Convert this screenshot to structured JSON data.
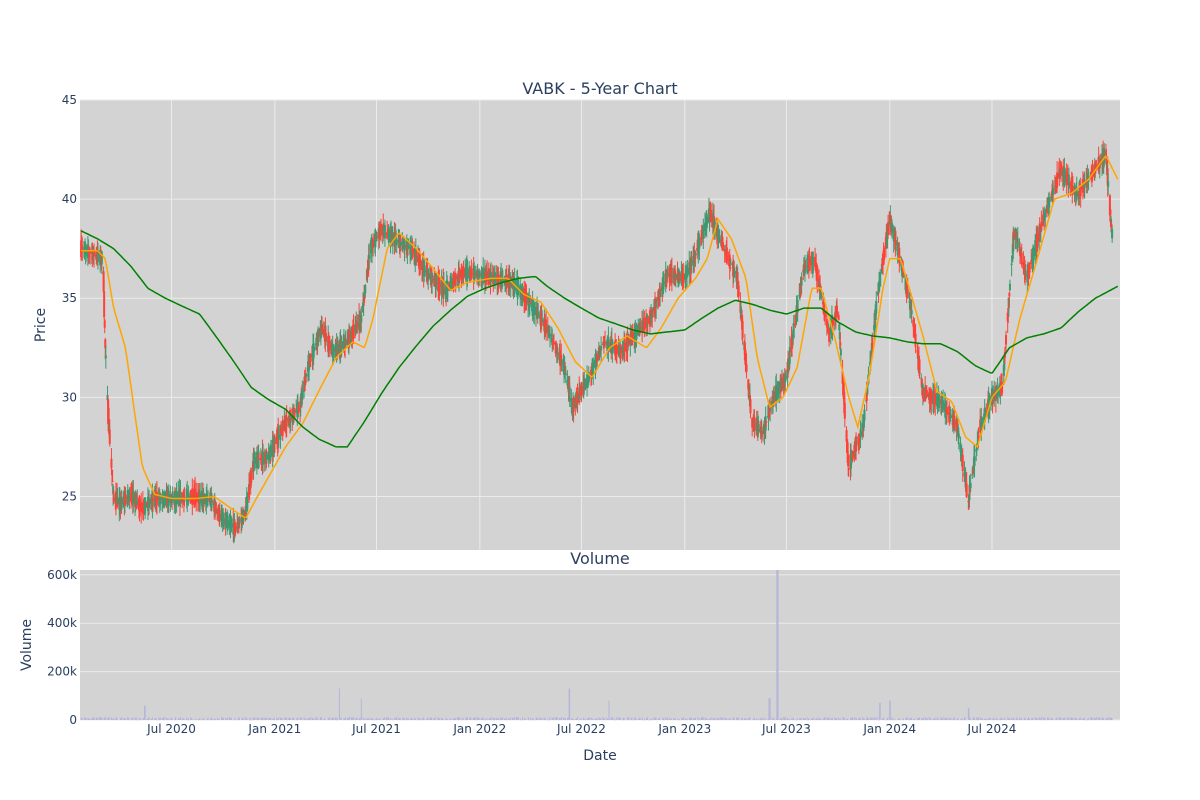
{
  "chart_data": {
    "type": "candlestick",
    "title": "VABK - 5-Year Chart",
    "price_panel": {
      "ylabel": "Price",
      "ylim": [
        22.3,
        45
      ],
      "yticks": [
        25,
        30,
        35,
        40,
        45
      ],
      "grid": true,
      "bars_anchor": [
        [
          "2020-01-22",
          37.5
        ],
        [
          "2020-02-10",
          37.3
        ],
        [
          "2020-03-01",
          37.0
        ],
        [
          "2020-03-05",
          33.0
        ],
        [
          "2020-03-10",
          29.5
        ],
        [
          "2020-03-20",
          25.0
        ],
        [
          "2020-04-01",
          24.6
        ],
        [
          "2020-04-20",
          25.1
        ],
        [
          "2020-05-10",
          24.4
        ],
        [
          "2020-06-01",
          24.9
        ],
        [
          "2020-07-01",
          24.9
        ],
        [
          "2020-08-10",
          25.0
        ],
        [
          "2020-09-10",
          24.8
        ],
        [
          "2020-10-01",
          23.8
        ],
        [
          "2020-10-25",
          23.4
        ],
        [
          "2020-11-10",
          24.2
        ],
        [
          "2020-11-25",
          26.8
        ],
        [
          "2020-12-20",
          27.0
        ],
        [
          "2021-01-20",
          28.7
        ],
        [
          "2021-02-15",
          29.5
        ],
        [
          "2021-03-01",
          31.5
        ],
        [
          "2021-03-25",
          33.5
        ],
        [
          "2021-04-15",
          32.3
        ],
        [
          "2021-05-10",
          32.8
        ],
        [
          "2021-06-05",
          34.0
        ],
        [
          "2021-06-20",
          37.5
        ],
        [
          "2021-07-10",
          38.5
        ],
        [
          "2021-08-10",
          37.8
        ],
        [
          "2021-09-01",
          37.5
        ],
        [
          "2021-10-01",
          36.2
        ],
        [
          "2021-11-01",
          35.4
        ],
        [
          "2021-12-01",
          36.3
        ],
        [
          "2022-01-01",
          36.2
        ],
        [
          "2022-02-01",
          36.0
        ],
        [
          "2022-03-01",
          35.8
        ],
        [
          "2022-04-01",
          34.8
        ],
        [
          "2022-05-01",
          33.5
        ],
        [
          "2022-06-01",
          31.5
        ],
        [
          "2022-06-15",
          29.5
        ],
        [
          "2022-07-15",
          31.0
        ],
        [
          "2022-08-10",
          32.8
        ],
        [
          "2022-09-10",
          32.3
        ],
        [
          "2022-10-10",
          33.4
        ],
        [
          "2022-11-01",
          34.0
        ],
        [
          "2022-12-01",
          36.2
        ],
        [
          "2023-01-01",
          36.0
        ],
        [
          "2023-01-20",
          37.2
        ],
        [
          "2023-02-15",
          39.3
        ],
        [
          "2023-03-15",
          37.3
        ],
        [
          "2023-04-05",
          36.0
        ],
        [
          "2023-05-01",
          28.8
        ],
        [
          "2023-05-20",
          28.2
        ],
        [
          "2023-06-10",
          30.1
        ],
        [
          "2023-07-01",
          31.0
        ],
        [
          "2023-08-01",
          36.5
        ],
        [
          "2023-08-20",
          37.0
        ],
        [
          "2023-09-15",
          33.2
        ],
        [
          "2023-10-01",
          34.5
        ],
        [
          "2023-10-20",
          26.5
        ],
        [
          "2023-11-15",
          28.5
        ],
        [
          "2023-12-10",
          35.0
        ],
        [
          "2024-01-01",
          39.0
        ],
        [
          "2024-01-20",
          37.0
        ],
        [
          "2024-02-10",
          34.2
        ],
        [
          "2024-03-01",
          30.2
        ],
        [
          "2024-04-01",
          29.8
        ],
        [
          "2024-05-01",
          28.5
        ],
        [
          "2024-05-20",
          24.8
        ],
        [
          "2024-06-10",
          28.5
        ],
        [
          "2024-07-01",
          30.0
        ],
        [
          "2024-07-20",
          30.5
        ],
        [
          "2024-08-10",
          38.5
        ],
        [
          "2024-09-01",
          36.0
        ],
        [
          "2024-10-01",
          39.0
        ],
        [
          "2024-11-01",
          41.5
        ],
        [
          "2024-12-01",
          40.2
        ],
        [
          "2025-01-01",
          41.5
        ],
        [
          "2025-01-20",
          42.3
        ],
        [
          "2025-02-01",
          38.0
        ]
      ],
      "sma_50": [
        [
          "2020-01-22",
          37.4
        ],
        [
          "2020-02-20",
          37.4
        ],
        [
          "2020-03-05",
          37.0
        ],
        [
          "2020-03-20",
          34.5
        ],
        [
          "2020-04-10",
          32.5
        ],
        [
          "2020-04-25",
          29.5
        ],
        [
          "2020-05-10",
          26.5
        ],
        [
          "2020-06-01",
          25.1
        ],
        [
          "2020-07-01",
          24.9
        ],
        [
          "2020-08-15",
          24.9
        ],
        [
          "2020-09-15",
          25.0
        ],
        [
          "2020-10-20",
          24.3
        ],
        [
          "2020-11-10",
          23.9
        ],
        [
          "2020-12-01",
          25.0
        ],
        [
          "2020-12-25",
          26.2
        ],
        [
          "2021-01-20",
          27.5
        ],
        [
          "2021-02-20",
          28.7
        ],
        [
          "2021-03-20",
          30.3
        ],
        [
          "2021-04-20",
          32.0
        ],
        [
          "2021-05-20",
          32.8
        ],
        [
          "2021-06-10",
          32.5
        ],
        [
          "2021-06-25",
          34.0
        ],
        [
          "2021-07-20",
          37.5
        ],
        [
          "2021-08-10",
          38.3
        ],
        [
          "2021-09-10",
          37.5
        ],
        [
          "2021-10-10",
          36.5
        ],
        [
          "2021-11-10",
          35.4
        ],
        [
          "2021-12-10",
          35.8
        ],
        [
          "2022-01-20",
          36.0
        ],
        [
          "2022-02-20",
          36.0
        ],
        [
          "2022-03-20",
          35.2
        ],
        [
          "2022-04-20",
          34.8
        ],
        [
          "2022-05-20",
          33.5
        ],
        [
          "2022-06-20",
          31.8
        ],
        [
          "2022-07-20",
          31.0
        ],
        [
          "2022-08-20",
          32.5
        ],
        [
          "2022-09-20",
          33.1
        ],
        [
          "2022-10-25",
          32.5
        ],
        [
          "2022-11-20",
          33.5
        ],
        [
          "2022-12-20",
          35.0
        ],
        [
          "2023-01-20",
          36.0
        ],
        [
          "2023-02-10",
          37.0
        ],
        [
          "2023-03-01",
          39.0
        ],
        [
          "2023-03-25",
          38.0
        ],
        [
          "2023-04-20",
          36.0
        ],
        [
          "2023-05-10",
          32.0
        ],
        [
          "2023-06-01",
          29.5
        ],
        [
          "2023-06-25",
          30.0
        ],
        [
          "2023-07-20",
          31.5
        ],
        [
          "2023-08-15",
          35.5
        ],
        [
          "2023-09-01",
          35.5
        ],
        [
          "2023-09-25",
          33.0
        ],
        [
          "2023-10-20",
          30.0
        ],
        [
          "2023-11-05",
          28.5
        ],
        [
          "2023-11-25",
          31.0
        ],
        [
          "2023-12-20",
          35.5
        ],
        [
          "2024-01-01",
          37.0
        ],
        [
          "2024-01-20",
          37.0
        ],
        [
          "2024-02-10",
          35.0
        ],
        [
          "2024-03-01",
          33.0
        ],
        [
          "2024-03-25",
          30.3
        ],
        [
          "2024-04-20",
          29.8
        ],
        [
          "2024-05-15",
          28.0
        ],
        [
          "2024-06-05",
          27.5
        ],
        [
          "2024-07-01",
          30.0
        ],
        [
          "2024-07-25",
          30.8
        ],
        [
          "2024-08-20",
          34.0
        ],
        [
          "2024-09-20",
          37.0
        ],
        [
          "2024-10-20",
          40.0
        ],
        [
          "2024-11-20",
          40.3
        ],
        [
          "2024-12-20",
          41.0
        ],
        [
          "2025-01-20",
          42.2
        ],
        [
          "2025-02-10",
          41.0
        ]
      ],
      "sma_200": [
        [
          "2020-01-22",
          38.4
        ],
        [
          "2020-02-20",
          38.0
        ],
        [
          "2020-03-20",
          37.5
        ],
        [
          "2020-04-20",
          36.6
        ],
        [
          "2020-05-20",
          35.5
        ],
        [
          "2020-06-20",
          35.0
        ],
        [
          "2020-07-20",
          34.6
        ],
        [
          "2020-08-20",
          34.2
        ],
        [
          "2020-09-20",
          33.0
        ],
        [
          "2020-10-20",
          31.8
        ],
        [
          "2020-11-20",
          30.5
        ],
        [
          "2020-12-20",
          29.9
        ],
        [
          "2021-01-20",
          29.4
        ],
        [
          "2021-02-20",
          28.5
        ],
        [
          "2021-03-20",
          27.9
        ],
        [
          "2021-04-20",
          27.5
        ],
        [
          "2021-05-10",
          27.5
        ],
        [
          "2021-06-10",
          28.8
        ],
        [
          "2021-07-10",
          30.2
        ],
        [
          "2021-08-10",
          31.5
        ],
        [
          "2021-09-10",
          32.6
        ],
        [
          "2021-10-10",
          33.6
        ],
        [
          "2021-11-10",
          34.4
        ],
        [
          "2021-12-10",
          35.1
        ],
        [
          "2022-01-10",
          35.5
        ],
        [
          "2022-02-10",
          35.8
        ],
        [
          "2022-03-10",
          36.0
        ],
        [
          "2022-04-10",
          36.1
        ],
        [
          "2022-05-01",
          35.6
        ],
        [
          "2022-06-01",
          35.0
        ],
        [
          "2022-07-01",
          34.5
        ],
        [
          "2022-08-01",
          34.0
        ],
        [
          "2022-09-01",
          33.7
        ],
        [
          "2022-10-01",
          33.4
        ],
        [
          "2022-11-01",
          33.2
        ],
        [
          "2022-12-01",
          33.3
        ],
        [
          "2023-01-01",
          33.4
        ],
        [
          "2023-02-01",
          34.0
        ],
        [
          "2023-03-01",
          34.5
        ],
        [
          "2023-04-01",
          34.9
        ],
        [
          "2023-05-01",
          34.7
        ],
        [
          "2023-06-01",
          34.4
        ],
        [
          "2023-07-01",
          34.2
        ],
        [
          "2023-08-01",
          34.5
        ],
        [
          "2023-09-01",
          34.5
        ],
        [
          "2023-10-01",
          33.8
        ],
        [
          "2023-11-01",
          33.3
        ],
        [
          "2023-12-01",
          33.1
        ],
        [
          "2024-01-01",
          33.0
        ],
        [
          "2024-02-01",
          32.8
        ],
        [
          "2024-03-01",
          32.7
        ],
        [
          "2024-04-01",
          32.7
        ],
        [
          "2024-05-01",
          32.3
        ],
        [
          "2024-06-01",
          31.6
        ],
        [
          "2024-07-01",
          31.2
        ],
        [
          "2024-08-01",
          32.5
        ],
        [
          "2024-09-01",
          33.0
        ],
        [
          "2024-10-01",
          33.2
        ],
        [
          "2024-11-01",
          33.5
        ],
        [
          "2024-12-01",
          34.3
        ],
        [
          "2025-01-01",
          35.0
        ],
        [
          "2025-02-10",
          35.6
        ]
      ]
    },
    "volume_panel": {
      "title": "Volume",
      "ylabel": "Volume",
      "ylim": [
        0,
        620000
      ],
      "yticks": [
        0,
        200000,
        400000,
        600000
      ],
      "ytick_labels": [
        "0",
        "200k",
        "400k",
        "600k"
      ],
      "spikes": [
        [
          "2020-05-15",
          60000
        ],
        [
          "2021-04-25",
          130000
        ],
        [
          "2021-06-05",
          90000
        ],
        [
          "2022-06-10",
          130000
        ],
        [
          "2022-08-20",
          80000
        ],
        [
          "2023-06-01",
          90000
        ],
        [
          "2023-06-15",
          620000
        ],
        [
          "2023-12-15",
          70000
        ],
        [
          "2024-01-01",
          80000
        ],
        [
          "2024-05-20",
          50000
        ]
      ]
    },
    "x": {
      "xlabel": "Date",
      "range": [
        "2020-01-20",
        "2025-02-14"
      ],
      "ticks": [
        "2020-07-01",
        "2021-01-01",
        "2021-07-01",
        "2022-01-01",
        "2022-07-01",
        "2023-01-01",
        "2023-07-01",
        "2024-01-01",
        "2024-07-01"
      ],
      "tick_labels": [
        "Jul 2020",
        "Jan 2021",
        "Jul 2021",
        "Jan 2022",
        "Jul 2022",
        "Jan 2023",
        "Jul 2023",
        "Jan 2024",
        "Jul 2024"
      ]
    },
    "colors": {
      "up": "#3d9970",
      "down": "#ff4136",
      "sma_50": "#ffa500",
      "sma_200": "#008000",
      "volume": "#b5b5dc",
      "plot_bg": "#d3d3d3",
      "grid": "#ebebeb"
    }
  }
}
